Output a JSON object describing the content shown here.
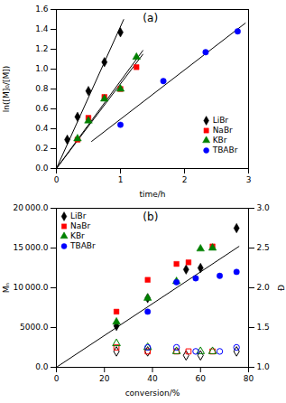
{
  "chart_data": [
    {
      "type": "scatter",
      "title": "(a)",
      "xlabel": "time/h",
      "ylabel": "ln([M]₀/[M])",
      "xlim": [
        0,
        3.0
      ],
      "ylim": [
        0.0,
        1.6
      ],
      "xticks": [
        0,
        1,
        2,
        3
      ],
      "yticks": [
        {
          "value": 0.0,
          "label": "0.0"
        },
        0.2,
        0.4,
        0.6,
        0.8,
        {
          "value": 1.0,
          "label": "1.0"
        },
        1.2,
        1.4,
        1.6
      ],
      "legend": "lower right",
      "series": [
        {
          "type": "line",
          "color": "black",
          "x": [
            0.0,
            1.05
          ],
          "values": [
            0.0,
            1.4985
          ]
        },
        {
          "type": "line",
          "color": "black",
          "x": [
            0.0,
            1.35
          ],
          "values": [
            0.0,
            1.1492
          ]
        },
        {
          "type": "line",
          "color": "black",
          "x": [
            0.0,
            1.35
          ],
          "values": [
            0.0,
            1.1873
          ]
        },
        {
          "type": "line",
          "color": "black",
          "x": [
            0.55,
            2.95
          ],
          "values": [
            0.2727,
            1.4626
          ]
        },
        {
          "name": "LiBr",
          "type": "scatter",
          "color": "black",
          "marker": "diamond",
          "x": [
            0.17,
            0.33,
            0.5,
            0.75,
            1.0
          ],
          "values": [
            0.29,
            0.52,
            0.78,
            1.07,
            1.37
          ]
        },
        {
          "name": "NaBr",
          "type": "scatter",
          "color": "red",
          "marker": "square",
          "x": [
            0.33,
            0.5,
            0.75,
            1.0,
            1.25
          ],
          "values": [
            0.29,
            0.51,
            0.72,
            0.8,
            1.02
          ]
        },
        {
          "name": "KBr",
          "type": "scatter",
          "color": "green",
          "marker": "triangle",
          "x": [
            0.33,
            0.5,
            0.75,
            1.0,
            1.25
          ],
          "values": [
            0.3,
            0.48,
            0.7,
            0.8,
            1.12
          ]
        },
        {
          "name": "TBABr",
          "type": "scatter",
          "color": "blue",
          "marker": "circle",
          "x": [
            1.0,
            1.67,
            2.33,
            2.83
          ],
          "values": [
            0.44,
            0.88,
            1.17,
            1.38
          ]
        }
      ]
    },
    {
      "type": "scatter",
      "title": "(b)",
      "xlabel": "conversion/%",
      "ylabel": "Mₙ",
      "y2label": "Đ",
      "xlim": [
        0,
        80
      ],
      "ylim": [
        0.0,
        20000
      ],
      "y2lim": [
        1.0,
        3.0
      ],
      "xticks": [
        0,
        20,
        40,
        60,
        80
      ],
      "yticks": [
        {
          "value": 0.0,
          "label": "0.0"
        },
        {
          "value": 5000.0,
          "label": "5000.0"
        },
        {
          "value": 10000.0,
          "label": "10 000.0"
        },
        {
          "value": 15000.0,
          "label": "15 000.0"
        },
        {
          "value": 20000.0,
          "label": "20 000.0"
        }
      ],
      "y2ticks": [
        {
          "value": 1.0,
          "label": "1.0"
        },
        1.5,
        {
          "value": 2.0,
          "label": "2.0"
        },
        2.5,
        {
          "value": 3.0,
          "label": "3.0"
        }
      ],
      "legend": "upper left",
      "series": [
        {
          "type": "line",
          "color": "black",
          "x": [
            0,
            76
          ],
          "values": [
            0,
            15200
          ]
        },
        {
          "name": "LiBr",
          "type": "scatter",
          "color": "black",
          "marker": "diamond",
          "x": [
            25,
            38,
            54,
            60,
            75
          ],
          "values": [
            5200,
            8700,
            12300,
            12500,
            17500
          ]
        },
        {
          "name": "NaBr",
          "type": "scatter",
          "color": "red",
          "marker": "square",
          "x": [
            25,
            38,
            50,
            55,
            65
          ],
          "values": [
            7000,
            11000,
            13000,
            13200,
            15200
          ]
        },
        {
          "name": "KBr",
          "type": "scatter",
          "color": "green",
          "marker": "triangle",
          "x": [
            25,
            38,
            50,
            60,
            65
          ],
          "values": [
            5700,
            8700,
            10800,
            14900,
            15000
          ]
        },
        {
          "name": "TBABr",
          "type": "scatter",
          "color": "blue",
          "marker": "circle",
          "x": [
            38,
            50,
            58,
            68,
            75
          ],
          "values": [
            7000,
            10700,
            11200,
            11500,
            12000
          ]
        },
        {
          "type": "scatter",
          "axis": "y2",
          "color": "black",
          "marker": "diamond-open",
          "x": [
            25,
            38,
            54,
            60,
            75
          ],
          "values": [
            1.2,
            1.2,
            1.15,
            1.15,
            1.2
          ]
        },
        {
          "type": "scatter",
          "axis": "y2",
          "color": "red",
          "marker": "square-open",
          "x": [
            25,
            38,
            50,
            55,
            65
          ],
          "values": [
            1.25,
            1.2,
            1.2,
            1.2,
            1.2
          ]
        },
        {
          "type": "scatter",
          "axis": "y2",
          "color": "green",
          "marker": "triangle-open",
          "x": [
            25,
            38,
            50,
            60,
            65
          ],
          "values": [
            1.3,
            1.25,
            1.2,
            1.2,
            1.2
          ]
        },
        {
          "type": "scatter",
          "axis": "y2",
          "color": "blue",
          "marker": "circle-open",
          "x": [
            38,
            50,
            58,
            68,
            75
          ],
          "values": [
            1.25,
            1.25,
            1.2,
            1.2,
            1.25
          ]
        }
      ]
    }
  ]
}
